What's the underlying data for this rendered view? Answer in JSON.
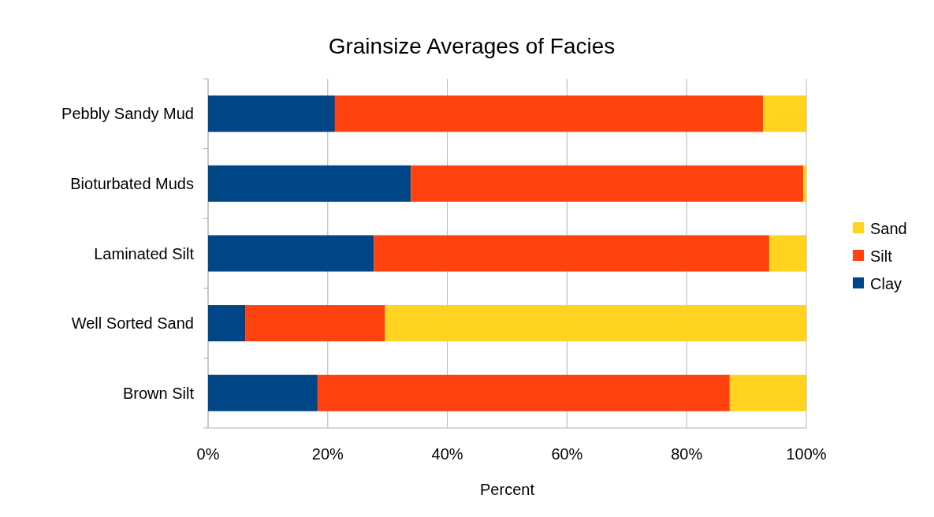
{
  "chart_data": {
    "type": "bar",
    "title": "Grainsize Averages of Facies",
    "xlabel": "Percent",
    "orientation": "horizontal",
    "stacked": true,
    "categories": [
      "Pebbly Sandy Mud",
      "Bioturbated Muds",
      "Laminated Silt",
      "Well Sorted Sand",
      "Brown Silt"
    ],
    "series": [
      {
        "name": "Clay",
        "color": "#004586",
        "values": [
          21.2,
          33.9,
          27.7,
          6.2,
          18.3
        ]
      },
      {
        "name": "Silt",
        "color": "#ff420e",
        "values": [
          71.6,
          65.6,
          66.1,
          23.4,
          68.9
        ]
      },
      {
        "name": "Sand",
        "color": "#ffd320",
        "values": [
          7.2,
          0.5,
          6.2,
          70.4,
          12.8
        ]
      }
    ],
    "xlim": [
      0,
      100
    ],
    "xticks": [
      {
        "value": 0,
        "label": "0%"
      },
      {
        "value": 20,
        "label": "20%"
      },
      {
        "value": 40,
        "label": "40%"
      },
      {
        "value": 60,
        "label": "60%"
      },
      {
        "value": 80,
        "label": "80%"
      },
      {
        "value": 100,
        "label": "100%"
      }
    ],
    "grid": "x",
    "legend": "right"
  }
}
